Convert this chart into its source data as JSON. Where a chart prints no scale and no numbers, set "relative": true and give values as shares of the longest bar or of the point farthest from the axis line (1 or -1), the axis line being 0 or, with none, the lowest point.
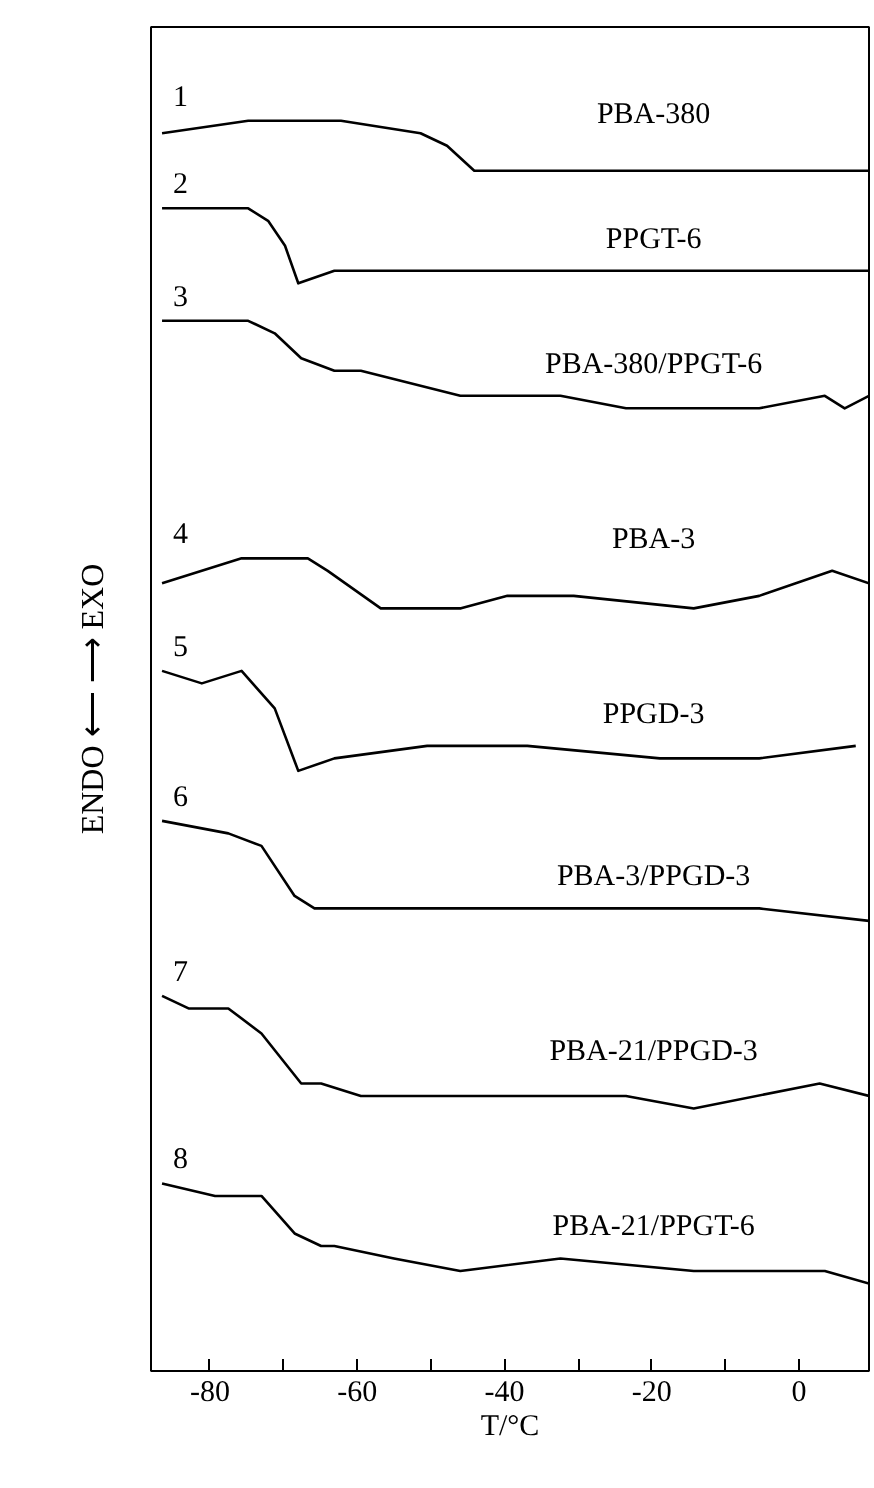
{
  "chart_data": {
    "type": "line",
    "relative": true,
    "xlabel": "T/°C",
    "ylabel": "ENDO ⟵ ⟶ EXO",
    "xlim": [
      -88,
      9.5
    ],
    "xticks": [
      -80,
      {
        "value": -70,
        "label": null
      },
      -60,
      {
        "value": -50,
        "label": null
      },
      -40,
      {
        "value": -30,
        "label": null
      },
      -20,
      {
        "value": -10,
        "label": null
      },
      0
    ],
    "grid": false,
    "annotations": [
      "1",
      "2",
      "3",
      "4",
      "5",
      "6",
      "7",
      "8"
    ],
    "series": [
      {
        "name": "PBA-380",
        "color": "#000000",
        "x": [
          -86.5,
          -74.8,
          -62.2,
          -51.4,
          -47.8,
          -44.1,
          -32.4,
          -23.5,
          -14.3,
          -5.4,
          3.5,
          9.5
        ],
        "values": [
          0.99,
          1.0,
          1.0,
          0.99,
          0.98,
          0.96,
          0.96,
          0.96,
          0.96,
          0.96,
          0.96,
          0.96
        ]
      },
      {
        "name": "PPGT-6",
        "color": "#000000",
        "x": [
          -86.5,
          -74.8,
          -72.1,
          -69.8,
          -68.0,
          -63.1,
          -50.5,
          -32.4,
          -14.3,
          3.5,
          9.5
        ],
        "values": [
          0.93,
          0.93,
          0.92,
          0.9,
          0.87,
          0.88,
          0.88,
          0.88,
          0.88,
          0.88,
          0.88
        ]
      },
      {
        "name": "PBA-380/PPGT-6",
        "color": "#000000",
        "x": [
          -86.5,
          -74.8,
          -71.2,
          -67.6,
          -63.1,
          -59.5,
          -46,
          -32.4,
          -23.5,
          -5.4,
          3.5,
          6.2,
          9.5
        ],
        "values": [
          0.84,
          0.84,
          0.83,
          0.81,
          0.8,
          0.8,
          0.78,
          0.78,
          0.77,
          0.77,
          0.78,
          0.77,
          0.78
        ]
      },
      {
        "name": "PBA-3",
        "color": "#000000",
        "x": [
          -86.5,
          -75.7,
          -66.7,
          -64,
          -56.8,
          -45.9,
          -39.6,
          -30.6,
          -14.3,
          -5.4,
          4.5,
          9.5
        ],
        "values": [
          0.63,
          0.65,
          0.65,
          0.64,
          0.61,
          0.61,
          0.62,
          0.62,
          0.61,
          0.62,
          0.64,
          0.63
        ]
      },
      {
        "name": "PPGD-3",
        "color": "#000000",
        "x": [
          -86.5,
          -81.1,
          -75.7,
          -71.2,
          -68,
          -63.1,
          -50.5,
          -36.9,
          -18.9,
          -5.4,
          7.7
        ],
        "values": [
          0.56,
          0.55,
          0.56,
          0.53,
          0.48,
          0.49,
          0.5,
          0.5,
          0.49,
          0.49,
          0.5
        ]
      },
      {
        "name": "PBA-3/PPGD-3",
        "color": "#000000",
        "x": [
          -86.5,
          -77.5,
          -73,
          -68.5,
          -65.8,
          -63.1,
          -41.4,
          -23.5,
          -5.4,
          9.5
        ],
        "values": [
          0.44,
          0.43,
          0.42,
          0.38,
          0.37,
          0.37,
          0.37,
          0.37,
          0.37,
          0.36
        ]
      },
      {
        "name": "PBA-21/PPGD-3",
        "color": "#000000",
        "x": [
          -86.5,
          -82.9,
          -77.5,
          -73,
          -67.6,
          -64.9,
          -59.5,
          -52.3,
          -41.4,
          -23.5,
          -14.3,
          2.8,
          9.5
        ],
        "values": [
          0.3,
          0.29,
          0.29,
          0.27,
          0.23,
          0.23,
          0.22,
          0.22,
          0.22,
          0.22,
          0.21,
          0.23,
          0.22
        ]
      },
      {
        "name": "PBA-21/PPGT-6",
        "color": "#000000",
        "x": [
          -86.5,
          -79.3,
          -73,
          -68.5,
          -64.9,
          -63.1,
          -55,
          -46,
          -32.4,
          -14.3,
          -0.8,
          3.5,
          9.5
        ],
        "values": [
          0.15,
          0.14,
          0.14,
          0.11,
          0.1,
          0.1,
          0.09,
          0.08,
          0.09,
          0.08,
          0.08,
          0.08,
          0.07
        ]
      }
    ]
  }
}
